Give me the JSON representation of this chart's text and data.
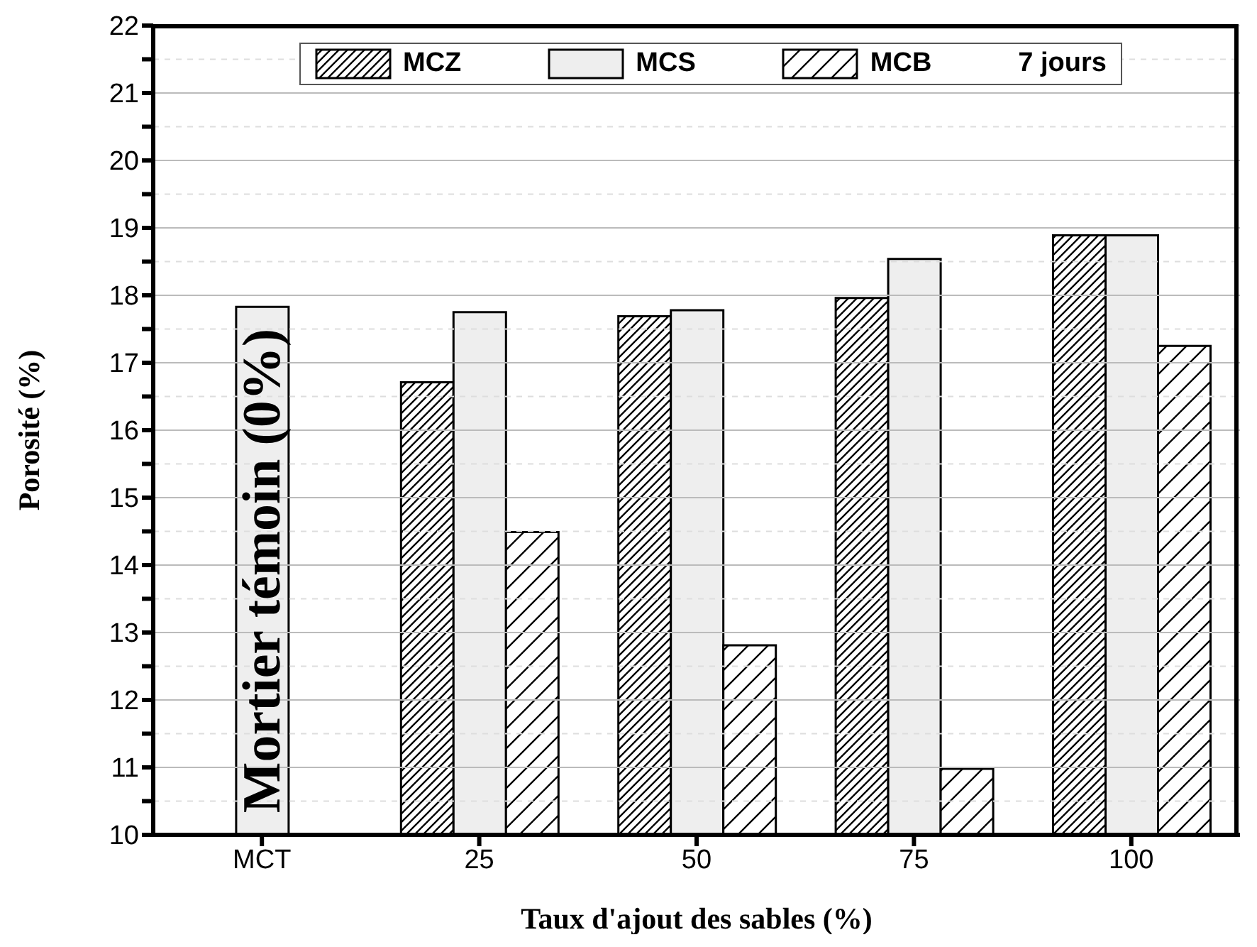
{
  "chart_data": {
    "type": "bar",
    "xlabel": "Taux d'ajout des sables (%)",
    "ylabel": "Porosité (%)",
    "legend_title": "7 jours",
    "categories": [
      "MCT",
      "25",
      "50",
      "75",
      "100"
    ],
    "series": [
      {
        "name": "MCZ",
        "color": "#000000",
        "values": [
          null,
          16.71,
          17.69,
          17.96,
          18.89
        ]
      },
      {
        "name": "MCS",
        "color": "#eeeeee",
        "values": [
          17.83,
          17.75,
          17.78,
          18.54,
          18.89
        ]
      },
      {
        "name": "MCB",
        "color": "#000000",
        "values": [
          null,
          14.49,
          12.81,
          10.98,
          17.25
        ]
      }
    ],
    "annotations": [
      "Mortier témoin (0%)"
    ],
    "ylim": [
      10,
      22
    ],
    "yticks": [
      10,
      {
        "value": 10.5,
        "label": null
      },
      11,
      {
        "value": 11.5,
        "label": null
      },
      12,
      {
        "value": 12.5,
        "label": null
      },
      13,
      {
        "value": 13.5,
        "label": null
      },
      14,
      {
        "value": 14.5,
        "label": null
      },
      15,
      {
        "value": 15.5,
        "label": null
      },
      16,
      {
        "value": 16.5,
        "label": null
      },
      17,
      {
        "value": 17.5,
        "label": null
      },
      18,
      {
        "value": 18.5,
        "label": null
      },
      19,
      {
        "value": 19.5,
        "label": null
      },
      20,
      {
        "value": 20.5,
        "label": null
      },
      21,
      {
        "value": 21.5,
        "label": null
      },
      22
    ],
    "grid": "y",
    "legend": "top"
  }
}
